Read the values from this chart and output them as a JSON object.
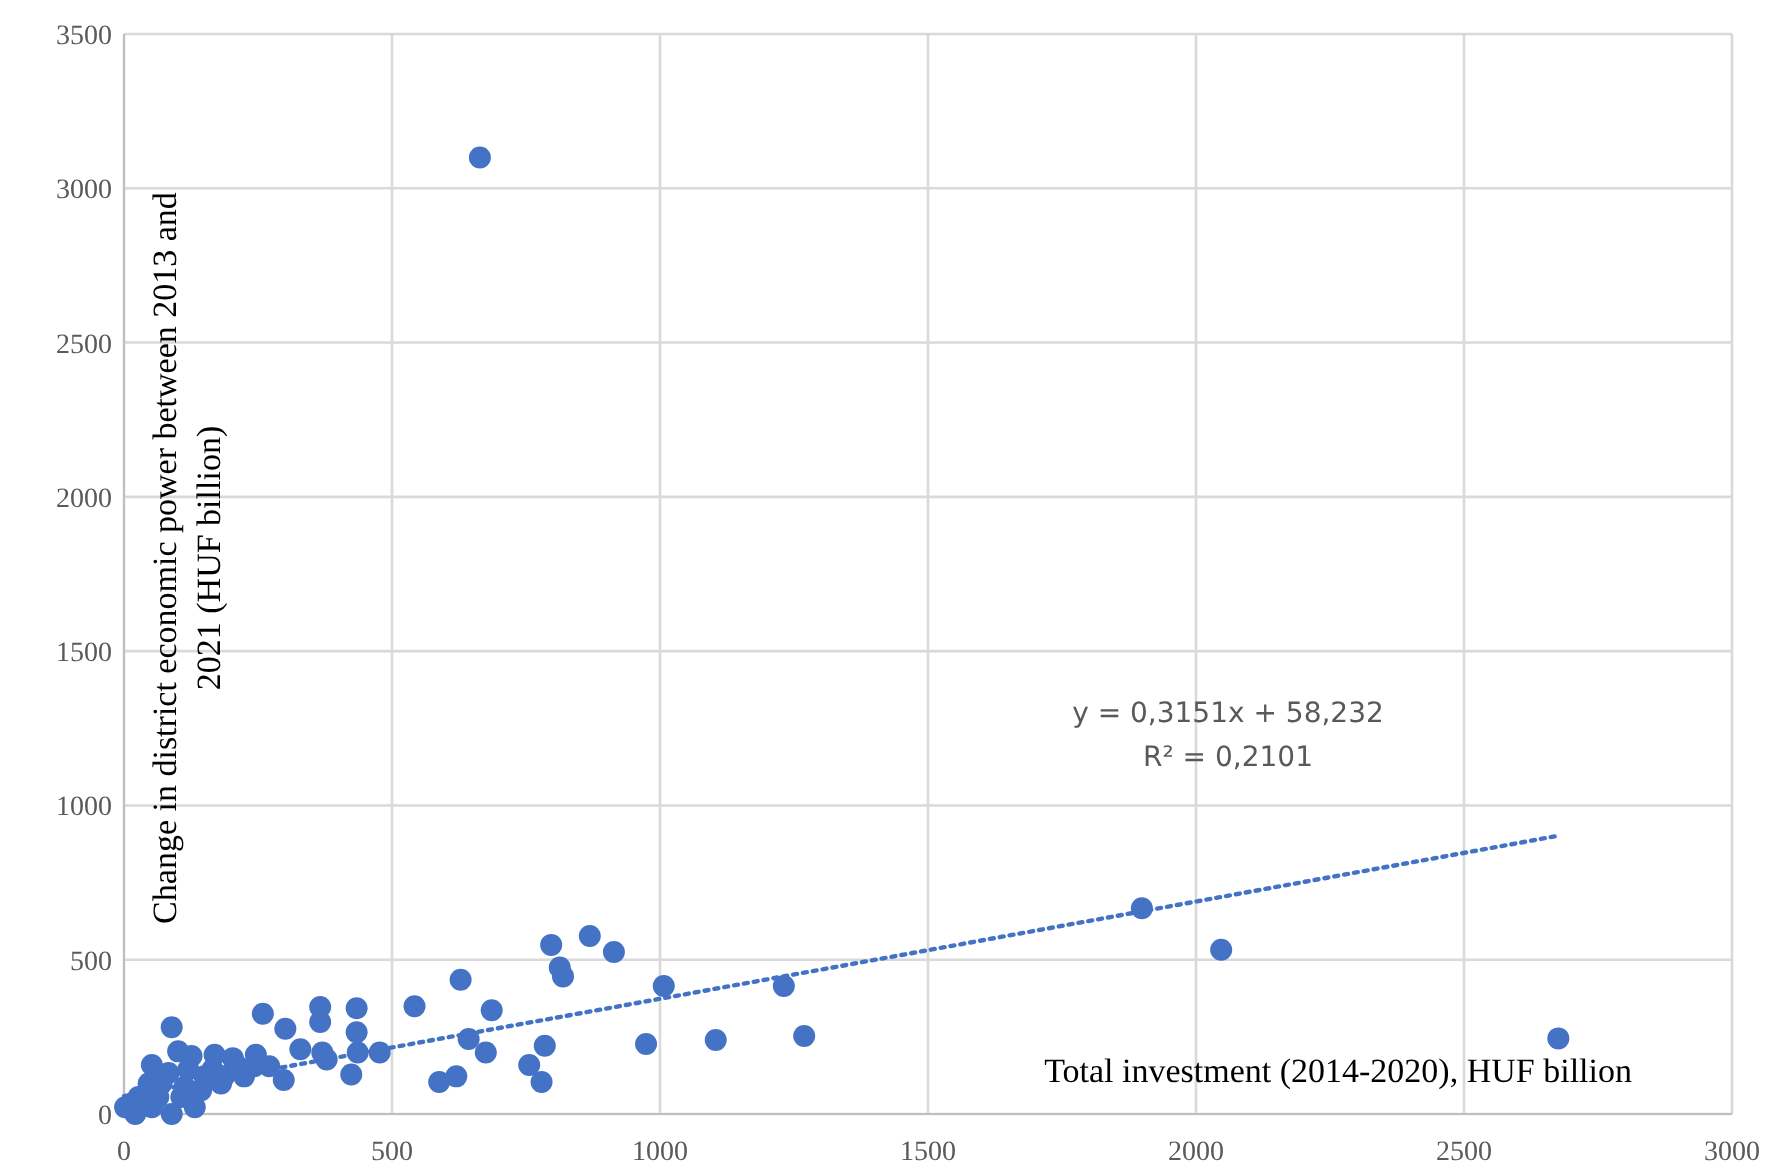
{
  "chart_data": {
    "type": "scatter",
    "xlabel": "Total investment (2014-2020), HUF billion",
    "ylabel": "Change in district economic power between 2013 and 2021 (HUF billion)",
    "xlim": [
      0,
      3000
    ],
    "xticks": [
      0,
      500,
      1000,
      1500,
      2000,
      2500,
      3000
    ],
    "ylim": [
      0,
      3500
    ],
    "yticks": [
      0,
      500,
      1000,
      1500,
      2000,
      2500,
      3000,
      3500
    ],
    "grid": true,
    "marker": "circle",
    "annotations": [
      "y = 0,3151x + 58,232",
      "R² = 0,2101"
    ],
    "series": [
      {
        "color": "#4472c4",
        "x": [
          664,
          1899,
          2047,
          2676,
          869,
          914,
          1007,
          974,
          1104,
          1231,
          1269,
          797,
          813,
          819,
          628,
          542,
          686,
          785,
          756,
          779,
          643,
          675,
          588,
          620,
          434,
          366,
          366,
          434,
          436,
          477,
          424,
          370,
          378,
          329,
          301,
          259,
          298,
          271,
          246,
          203,
          169,
          165,
          126,
          89,
          101,
          52,
          46,
          83,
          132,
          89,
          27,
          64,
          113,
          150,
          187,
          212,
          21,
          52,
          107,
          144,
          181,
          224,
          243,
          120,
          2,
          70
        ],
        "values": [
          3100,
          667,
          532,
          245,
          577,
          525,
          415,
          227,
          240,
          415,
          253,
          548,
          475,
          446,
          435,
          349,
          336,
          221,
          159,
          104,
          243,
          199,
          104,
          122,
          343,
          347,
          298,
          265,
          199,
          199,
          128,
          199,
          177,
          210,
          276,
          325,
          110,
          155,
          192,
          181,
          192,
          144,
          188,
          281,
          203,
          159,
          99,
          133,
          22,
          0,
          55,
          55,
          88,
          122,
          122,
          155,
          0,
          22,
          55,
          77,
          99,
          122,
          155,
          144,
          22,
          99
        ]
      },
      {
        "type": "line",
        "color": "#4472c4",
        "line_style": "dotted",
        "marker": "none",
        "x": [
          0,
          2680
        ],
        "values": [
          58,
          903
        ]
      }
    ]
  }
}
